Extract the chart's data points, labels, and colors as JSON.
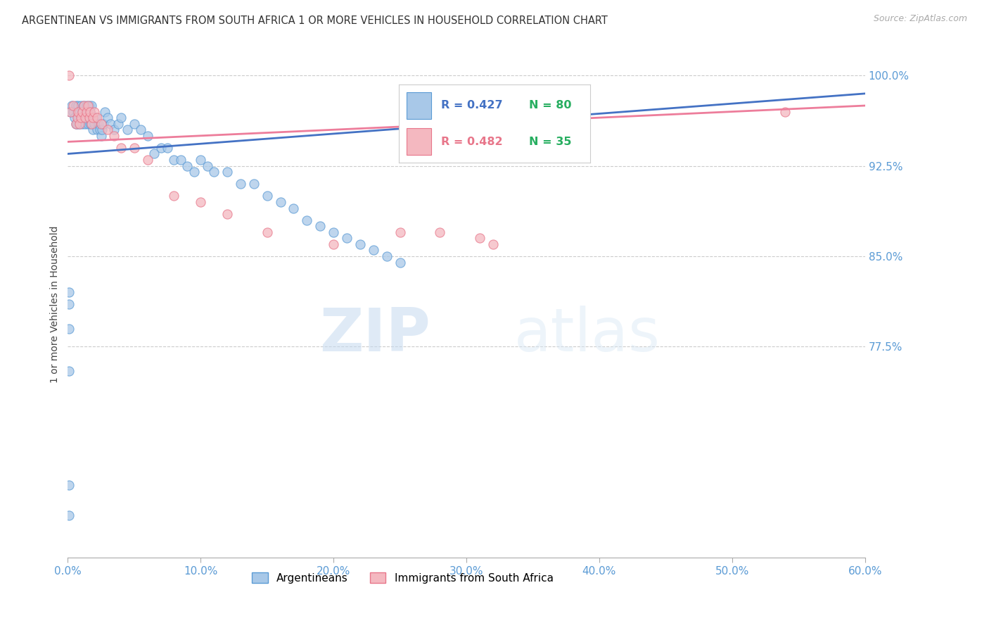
{
  "title": "ARGENTINEAN VS IMMIGRANTS FROM SOUTH AFRICA 1 OR MORE VEHICLES IN HOUSEHOLD CORRELATION CHART",
  "source": "Source: ZipAtlas.com",
  "ylabel": "1 or more Vehicles in Household",
  "xlim": [
    0.0,
    0.6
  ],
  "ylim": [
    0.6,
    1.02
  ],
  "yticks": [
    0.775,
    0.85,
    0.925,
    1.0
  ],
  "ytick_labels": [
    "77.5%",
    "85.0%",
    "92.5%",
    "100.0%"
  ],
  "xticks": [
    0.0,
    0.1,
    0.2,
    0.3,
    0.4,
    0.5,
    0.6
  ],
  "xtick_labels": [
    "0.0%",
    "10.0%",
    "20.0%",
    "30.0%",
    "40.0%",
    "50.0%",
    "60.0%"
  ],
  "blue_color": "#a8c8e8",
  "pink_color": "#f4b8c0",
  "blue_edge_color": "#5b9bd5",
  "pink_edge_color": "#e8768a",
  "blue_line_color": "#4472c4",
  "pink_line_color": "#ed7d9b",
  "tick_color": "#5b9bd5",
  "legend_blue_r": "R = 0.427",
  "legend_blue_n": "N = 80",
  "legend_pink_r": "R = 0.482",
  "legend_pink_n": "N = 35",
  "watermark_zip": "ZIP",
  "watermark_atlas": "atlas",
  "blue_x": [
    0.002,
    0.003,
    0.004,
    0.005,
    0.006,
    0.006,
    0.007,
    0.007,
    0.008,
    0.008,
    0.009,
    0.009,
    0.01,
    0.01,
    0.011,
    0.011,
    0.012,
    0.012,
    0.013,
    0.013,
    0.014,
    0.014,
    0.015,
    0.015,
    0.016,
    0.016,
    0.017,
    0.017,
    0.018,
    0.018,
    0.019,
    0.019,
    0.02,
    0.021,
    0.022,
    0.023,
    0.024,
    0.025,
    0.026,
    0.027,
    0.028,
    0.03,
    0.032,
    0.035,
    0.038,
    0.04,
    0.045,
    0.05,
    0.055,
    0.06,
    0.065,
    0.07,
    0.075,
    0.08,
    0.085,
    0.09,
    0.095,
    0.1,
    0.105,
    0.11,
    0.12,
    0.13,
    0.14,
    0.15,
    0.16,
    0.17,
    0.18,
    0.19,
    0.2,
    0.21,
    0.22,
    0.23,
    0.24,
    0.25,
    0.001,
    0.001,
    0.001,
    0.001,
    0.001,
    0.001
  ],
  "blue_y": [
    0.97,
    0.975,
    0.97,
    0.965,
    0.975,
    0.96,
    0.97,
    0.96,
    0.975,
    0.965,
    0.97,
    0.96,
    0.975,
    0.965,
    0.97,
    0.96,
    0.975,
    0.965,
    0.97,
    0.96,
    0.975,
    0.965,
    0.97,
    0.96,
    0.975,
    0.965,
    0.97,
    0.96,
    0.975,
    0.96,
    0.965,
    0.955,
    0.96,
    0.965,
    0.955,
    0.96,
    0.955,
    0.95,
    0.955,
    0.96,
    0.97,
    0.965,
    0.96,
    0.955,
    0.96,
    0.965,
    0.955,
    0.96,
    0.955,
    0.95,
    0.935,
    0.94,
    0.94,
    0.93,
    0.93,
    0.925,
    0.92,
    0.93,
    0.925,
    0.92,
    0.92,
    0.91,
    0.91,
    0.9,
    0.895,
    0.89,
    0.88,
    0.875,
    0.87,
    0.865,
    0.86,
    0.855,
    0.85,
    0.845,
    0.82,
    0.81,
    0.79,
    0.755,
    0.635,
    0.66
  ],
  "pink_x": [
    0.002,
    0.004,
    0.006,
    0.007,
    0.008,
    0.009,
    0.01,
    0.011,
    0.012,
    0.013,
    0.014,
    0.015,
    0.016,
    0.017,
    0.018,
    0.019,
    0.02,
    0.022,
    0.025,
    0.03,
    0.035,
    0.04,
    0.05,
    0.06,
    0.08,
    0.1,
    0.12,
    0.15,
    0.2,
    0.25,
    0.28,
    0.31,
    0.32,
    0.54,
    0.001
  ],
  "pink_y": [
    0.97,
    0.975,
    0.96,
    0.965,
    0.97,
    0.96,
    0.965,
    0.97,
    0.975,
    0.965,
    0.97,
    0.975,
    0.965,
    0.97,
    0.96,
    0.965,
    0.97,
    0.965,
    0.96,
    0.955,
    0.95,
    0.94,
    0.94,
    0.93,
    0.9,
    0.895,
    0.885,
    0.87,
    0.86,
    0.87,
    0.87,
    0.865,
    0.86,
    0.97,
    1.0
  ],
  "blue_trend_x": [
    0.0,
    0.6
  ],
  "blue_trend_y": [
    0.935,
    0.985
  ],
  "pink_trend_x": [
    0.0,
    0.6
  ],
  "pink_trend_y": [
    0.945,
    0.975
  ]
}
